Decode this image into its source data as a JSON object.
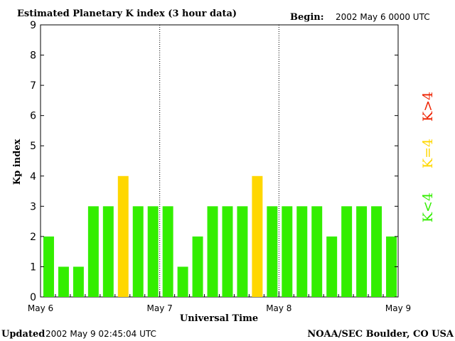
{
  "header": {
    "title": "Estimated Planetary K index (3 hour data)",
    "begin_label": "Begin:",
    "begin_value": "2002 May 6 0000 UTC"
  },
  "footer": {
    "updated_label": "Updated",
    "updated_value": "2002 May  9 02:45:04 UTC",
    "credit": "NOAA/SEC Boulder, CO USA"
  },
  "legend": {
    "high": "K>4",
    "equal": "K=4",
    "low": "K<4"
  },
  "colors": {
    "low": "#33ee00",
    "equal": "#ffd700",
    "high": "#ee2200",
    "axis": "#000000"
  },
  "chart_data": {
    "type": "bar",
    "title": "Estimated Planetary K index (3 hour data)",
    "xlabel": "Universal Time",
    "ylabel": "Kp index",
    "ylim": [
      0,
      9
    ],
    "yticks": [
      "0",
      "1",
      "2",
      "3",
      "4",
      "5",
      "6",
      "7",
      "8",
      "9"
    ],
    "day_labels": [
      "May 6",
      "May 7",
      "May 8",
      "May 9"
    ],
    "values": [
      2,
      1,
      1,
      3,
      3,
      4,
      3,
      3,
      3,
      1,
      2,
      3,
      3,
      3,
      4,
      3,
      3,
      3,
      3,
      2,
      3,
      3,
      3,
      2
    ]
  }
}
